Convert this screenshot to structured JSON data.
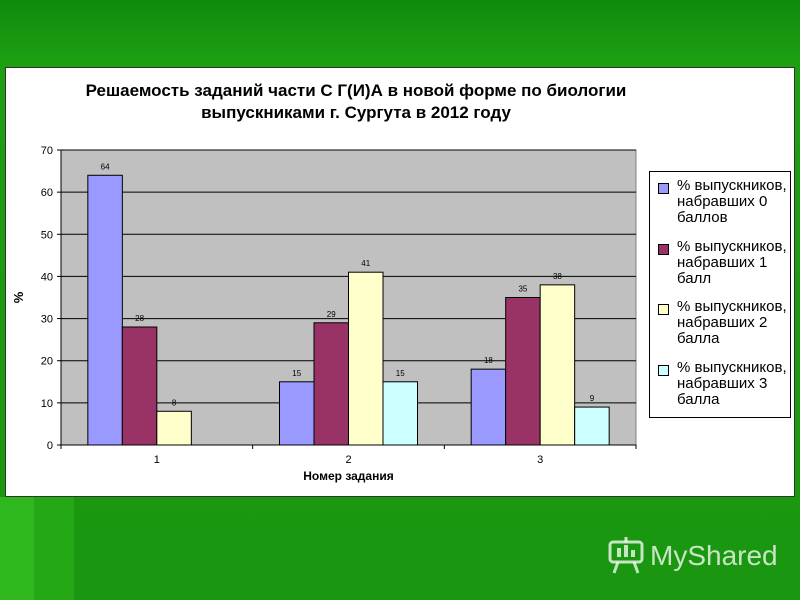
{
  "page": {
    "background": "#1a9610"
  },
  "brand": {
    "text": "MyShared",
    "icon": "presentation-board-icon"
  },
  "chart_data": {
    "type": "bar",
    "title": "Решаемость заданий части С Г(И)А в новой форме по биологии выпускниками г. Сургута в 2012 году",
    "title_lines": [
      "Решаемость заданий части С Г(И)А в новой форме по биологии",
      "выпускниками г. Сургута в 2012 году"
    ],
    "xlabel": "Номер задания",
    "ylabel": "%",
    "categories": [
      "1",
      "2",
      "3"
    ],
    "ylim": [
      0,
      70
    ],
    "yticks": [
      "0",
      "10",
      "20",
      "30",
      "40",
      "50",
      "60",
      "70"
    ],
    "grid": true,
    "plot_background": "#c0c0c0",
    "legend_position": "right",
    "series": [
      {
        "name": "% выпускников, набравших 0 баллов",
        "legend_lines": [
          "% выпускников,",
          "набравших 0",
          "баллов"
        ],
        "color": "#9999ff",
        "values": [
          64,
          15,
          18
        ]
      },
      {
        "name": "% выпускников, набравших 1 балл",
        "legend_lines": [
          "% выпускников,",
          "набравших 1",
          "балл"
        ],
        "color": "#993366",
        "values": [
          28,
          29,
          35
        ]
      },
      {
        "name": "% выпускников, набравших 2 балла",
        "legend_lines": [
          "% выпускников,",
          "набравших 2",
          "балла"
        ],
        "color": "#ffffcc",
        "values": [
          8,
          41,
          38
        ]
      },
      {
        "name": "% выпускников, набравших 3 балла",
        "legend_lines": [
          "% выпускников,",
          "набравших 3",
          "балла"
        ],
        "color": "#ccffff",
        "values": [
          null,
          15,
          9
        ]
      }
    ]
  }
}
